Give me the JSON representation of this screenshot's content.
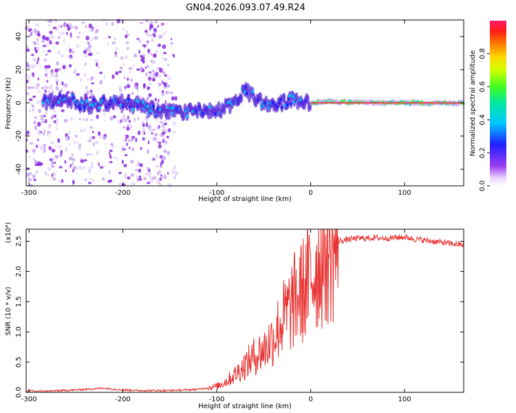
{
  "title": "GN04.2026.093.07.49.R24",
  "chart_data": [
    {
      "type": "heatmap",
      "xlabel": "Height of straight line (km)",
      "ylabel": "Frequency (Hz)",
      "xlim": [
        -303,
        163
      ],
      "ylim": [
        -50,
        50
      ],
      "xticks": [
        -300,
        -200,
        -100,
        0,
        100
      ],
      "yticks": [
        -40,
        -20,
        0,
        20,
        40
      ],
      "colorbar": {
        "label": "Normalized spectral amplitude",
        "range": [
          0,
          1
        ],
        "ticks": [
          "0.0",
          "0.2",
          "0.4",
          "0.6",
          "0.8"
        ]
      },
      "ridge": {
        "x": [
          -280,
          -260,
          -240,
          -220,
          -200,
          -180,
          -160,
          -140,
          -120,
          -100,
          -80,
          -70,
          -60,
          -50,
          -40,
          -30,
          -20,
          -10,
          0,
          20,
          50,
          100,
          163
        ],
        "y": [
          0,
          3,
          -2,
          0,
          0,
          -2,
          -5,
          -6,
          -5,
          -5,
          0,
          8,
          3,
          0,
          -2,
          0,
          2,
          1,
          0,
          1,
          0,
          0,
          0
        ]
      }
    },
    {
      "type": "line",
      "xlabel": "Height of straight line (km)",
      "ylabel": "SNR (10 * v/v)",
      "multiplier": "(x10⁴)",
      "xlim": [
        -303,
        163
      ],
      "ylim": [
        0,
        2.7
      ],
      "xticks": [
        -300,
        -200,
        -100,
        0,
        100
      ],
      "yticks": [
        "0.0",
        "0.5",
        "1.0",
        "1.5",
        "2.0",
        "2.5"
      ],
      "series": [
        {
          "name": "SNR",
          "color": "#e8312f",
          "x": [
            -303,
            -280,
            -250,
            -220,
            -200,
            -180,
            -150,
            -120,
            -100,
            -90,
            -80,
            -70,
            -60,
            -55,
            -50,
            -45,
            -40,
            -35,
            -30,
            -25,
            -20,
            -15,
            -10,
            -5,
            0,
            5,
            10,
            15,
            20,
            25,
            30,
            40,
            50,
            60,
            70,
            80,
            90,
            100,
            110,
            120,
            130,
            140,
            150,
            163
          ],
          "y": [
            0.02,
            0.02,
            0.04,
            0.07,
            0.04,
            0.03,
            0.03,
            0.05,
            0.1,
            0.18,
            0.3,
            0.45,
            0.6,
            0.65,
            0.7,
            0.8,
            0.9,
            1.05,
            1.2,
            1.3,
            1.45,
            1.55,
            1.65,
            1.75,
            1.9,
            2.05,
            2.2,
            2.3,
            2.4,
            2.45,
            2.5,
            2.53,
            2.55,
            2.55,
            2.56,
            2.55,
            2.56,
            2.57,
            2.54,
            2.52,
            2.5,
            2.48,
            2.46,
            2.44
          ]
        }
      ]
    }
  ]
}
